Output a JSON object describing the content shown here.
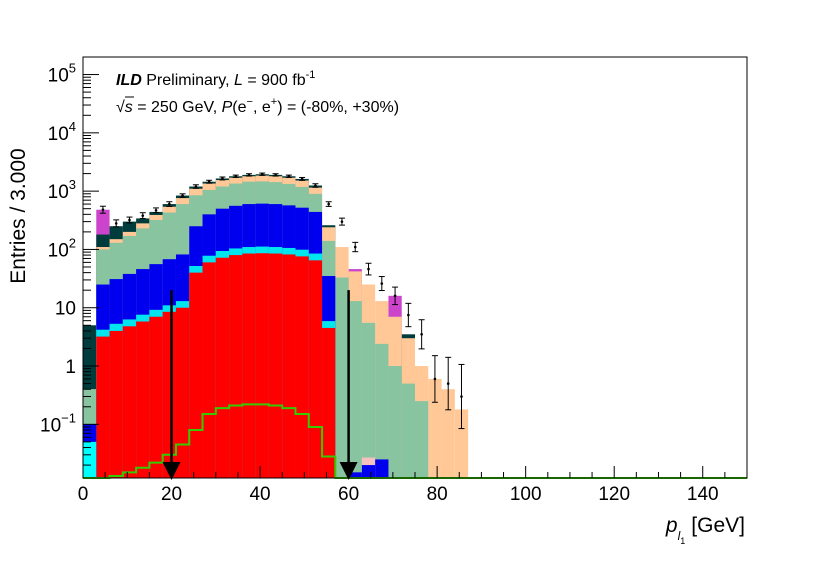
{
  "chart_data": {
    "type": "bar",
    "subtype": "stacked-histogram-log",
    "title_experiment": "ILD",
    "title_status": "Preliminary,",
    "title_lumi_prefix": "L",
    "title_lumi_eq": "= 900 fb",
    "title_lumi_exp": "-1",
    "title_line2_sqrt": "√",
    "title_line2_s": "s",
    "title_line2_energy": "= 250 GeV,",
    "title_line2_P": "P",
    "title_line2_open": "(e",
    "title_line2_minus": "−",
    "title_line2_comma": ", e",
    "title_line2_plus": "+",
    "title_line2_rest": ") = (-80%, +30%)",
    "ylabel": "Entries / 3.000",
    "xlabel_p": "p",
    "xlabel_l": "l",
    "xlabel_1": "1",
    "xlabel_unit": "[GeV]",
    "xlim": [
      0,
      150
    ],
    "ylim": [
      0.012,
      200000
    ],
    "yscale": "log",
    "x_ticks": [
      "0",
      "20",
      "40",
      "60",
      "80",
      "100",
      "120",
      "140"
    ],
    "y_ticks": [
      {
        "base": "10",
        "exp": "5"
      },
      {
        "base": "10",
        "exp": "4"
      },
      {
        "base": "10",
        "exp": "3"
      },
      {
        "base": "10",
        "exp": "2"
      },
      {
        "base": "10",
        "exp": ""
      },
      {
        "base": "1",
        "exp": ""
      },
      {
        "base": "10",
        "exp": "−1"
      }
    ],
    "bin_width": 3,
    "bin_edges_start": 0,
    "layers": [
      {
        "color": "#00ffff",
        "values": [
          0.05,
          0.012,
          0.012,
          0.012,
          0.012,
          0.012,
          0.012,
          0.012,
          0.012,
          0.012,
          0.012,
          0.012,
          0.012,
          0.012,
          0.012,
          0.012,
          0.012,
          0.012,
          0.012,
          0.012,
          0.012,
          0.012,
          0.012,
          0.012,
          0.012,
          0.012,
          0.012,
          0.012,
          0.012,
          0.012,
          0.012,
          0.012,
          0.012,
          0.012,
          0.012,
          0.012,
          0.012,
          0.012,
          0.012,
          0.012,
          0.012,
          0.012,
          0.012,
          0.012,
          0.012,
          0.012,
          0.012,
          0.012,
          0.012,
          0.012
        ]
      },
      {
        "color": "#0000ee",
        "values": [
          0.1,
          0.012,
          0.012,
          0.012,
          0.012,
          0.012,
          0.012,
          0.012,
          0.012,
          0.012,
          0.012,
          0.012,
          0.012,
          0.012,
          0.012,
          0.012,
          0.012,
          0.012,
          0.012,
          0.012,
          0.012,
          0.012,
          0.012,
          0.012,
          0.012,
          0.012,
          0.012,
          0.012,
          0.012,
          0.012,
          0.012,
          0.012,
          0.012,
          0.012,
          0.012,
          0.012,
          0.012,
          0.012,
          0.012,
          0.012,
          0.012,
          0.012,
          0.012,
          0.012,
          0.012,
          0.012,
          0.012,
          0.012,
          0.012,
          0.012
        ]
      },
      {
        "color": "#ff0000",
        "values": [
          0.012,
          3.2,
          4.0,
          4.8,
          5.8,
          7.0,
          8.5,
          10,
          40,
          60,
          72,
          80,
          85,
          86,
          85,
          82,
          76,
          65,
          4.5,
          0.012,
          0.012,
          0.012,
          0.012,
          0.012,
          0.012,
          0.012,
          0.012,
          0.012,
          0.012,
          0.012,
          0.012,
          0.012,
          0.012,
          0.012,
          0.012,
          0.012,
          0.012,
          0.012,
          0.012,
          0.012,
          0.012,
          0.012,
          0.012,
          0.012,
          0.012,
          0.012,
          0.012,
          0.012,
          0.012,
          0.012
        ]
      },
      {
        "color": "#00e5ee",
        "values": [
          0.012,
          4.2,
          5.3,
          6.3,
          7.6,
          9.2,
          11,
          13,
          52,
          78,
          94,
          104,
          110,
          112,
          110,
          106,
          99,
          85,
          5.9,
          0.012,
          0.012,
          0.012,
          0.012,
          0.012,
          0.012,
          0.012,
          0.012,
          0.012,
          0.012,
          0.012,
          0.012,
          0.012,
          0.012,
          0.012,
          0.012,
          0.012,
          0.012,
          0.012,
          0.012,
          0.012,
          0.012,
          0.012,
          0.012,
          0.012,
          0.012,
          0.012,
          0.012,
          0.012,
          0.012,
          0.012
        ]
      },
      {
        "color": "#0000ee",
        "values": [
          0.012,
          25,
          31,
          38,
          46,
          56,
          68,
          82,
          250,
          400,
          500,
          560,
          600,
          610,
          600,
          570,
          520,
          440,
          35,
          0.012,
          0.015,
          0.02,
          0.025,
          0.012,
          0.012,
          0.012,
          0.012,
          0.012,
          0.012,
          0.012,
          0.012,
          0.012,
          0.012,
          0.012,
          0.012,
          0.012,
          0.012,
          0.012,
          0.012,
          0.012,
          0.012,
          0.012,
          0.012,
          0.012,
          0.012,
          0.012,
          0.012,
          0.012,
          0.012,
          0.012
        ]
      },
      {
        "color": "#f4c0c0",
        "values": [
          0.012,
          0.012,
          0.012,
          0.012,
          0.012,
          0.012,
          0.012,
          0.012,
          0.012,
          0.012,
          0.012,
          0.012,
          0.012,
          0.012,
          0.012,
          0.012,
          0.012,
          0.012,
          0.012,
          0.012,
          0.012,
          0.027,
          0.012,
          0.012,
          0.012,
          0.012,
          0.012,
          0.012,
          0.012,
          0.012,
          0.012,
          0.012,
          0.012,
          0.012,
          0.012,
          0.012,
          0.012,
          0.012,
          0.012,
          0.012,
          0.012,
          0.012,
          0.012,
          0.012,
          0.012,
          0.012,
          0.012,
          0.012,
          0.012,
          0.012
        ]
      },
      {
        "color": "#88c4a0",
        "values": [
          0.4,
          100,
          130,
          170,
          230,
          320,
          430,
          600,
          850,
          1050,
          1200,
          1350,
          1450,
          1470,
          1430,
          1330,
          1180,
          900,
          140,
          33,
          13,
          5.5,
          2.4,
          1.0,
          0.5,
          0.25,
          0.012,
          0.012,
          0.012,
          0.012,
          0.012,
          0.012,
          0.012,
          0.012,
          0.012,
          0.012,
          0.012,
          0.012,
          0.012,
          0.012,
          0.012,
          0.012,
          0.012,
          0.012,
          0.012,
          0.012,
          0.012,
          0.012,
          0.012,
          0.012
        ]
      },
      {
        "color": "#ffc896",
        "values": [
          0.4,
          110,
          150,
          200,
          280,
          390,
          540,
          760,
          1100,
          1350,
          1550,
          1700,
          1800,
          1850,
          1800,
          1700,
          1520,
          1150,
          240,
          110,
          42,
          25,
          13,
          7,
          3.0,
          1.0,
          0.6,
          0.4,
          0.18,
          0.012,
          0.012,
          0.012,
          0.012,
          0.012,
          0.012,
          0.012,
          0.012,
          0.012,
          0.012,
          0.012,
          0.012,
          0.012,
          0.012,
          0.012,
          0.012,
          0.012,
          0.012,
          0.012,
          0.012,
          0.012
        ]
      },
      {
        "color": "#003c3c",
        "values": [
          5,
          180,
          250,
          300,
          340,
          440,
          600,
          840,
          1200,
          1450,
          1650,
          1800,
          1900,
          1950,
          1900,
          1800,
          1620,
          1250,
          260,
          0.012,
          0.012,
          0.012,
          0.012,
          0.012,
          3.5,
          0.012,
          0.012,
          0.012,
          0.012,
          0.012,
          0.012,
          0.012,
          0.012,
          0.012,
          0.012,
          0.012,
          0.012,
          0.012,
          0.012,
          0.012,
          0.012,
          0.012,
          0.012,
          0.012,
          0.012,
          0.012,
          0.012,
          0.012,
          0.012,
          0.012
        ]
      },
      {
        "color": "#cc44cc",
        "values": [
          0.012,
          480,
          0.012,
          0.012,
          0.012,
          0.012,
          0.012,
          0.012,
          0.012,
          0.012,
          0.012,
          0.012,
          0.012,
          0.012,
          0.012,
          0.012,
          0.012,
          0.012,
          0.012,
          0.012,
          46,
          0.012,
          0.012,
          16,
          0.012,
          0.012,
          0.012,
          0.012,
          0.012,
          0.012,
          0.012,
          0.012,
          0.012,
          0.012,
          0.012,
          0.012,
          0.012,
          0.012,
          0.012,
          0.012,
          0.012,
          0.012,
          0.012,
          0.012,
          0.012,
          0.012,
          0.012,
          0.012,
          0.012,
          0.012
        ]
      }
    ],
    "data_points": {
      "x": [
        4.5,
        7.5,
        10.5,
        13.5,
        16.5,
        19.5,
        22.5,
        25.5,
        28.5,
        31.5,
        34.5,
        37.5,
        40.5,
        43.5,
        46.5,
        49.5,
        52.5,
        55.5,
        58.5,
        61.5,
        64.5,
        67.5,
        70.5,
        73.5,
        76.5,
        79.5,
        82.5,
        85.5
      ],
      "y": [
        480,
        280,
        320,
        380,
        470,
        600,
        840,
        1200,
        1450,
        1650,
        1800,
        1900,
        1950,
        1900,
        1800,
        1620,
        1250,
        600,
        300,
        110,
        46,
        26,
        16,
        7.5,
        3.5,
        0.6,
        0.5,
        0.3
      ],
      "err": [
        0.06,
        0.06,
        0.05,
        0.05,
        0.04,
        0.04,
        0.03,
        0.03,
        0.025,
        0.025,
        0.02,
        0.02,
        0.02,
        0.02,
        0.02,
        0.025,
        0.03,
        0.04,
        0.06,
        0.08,
        0.1,
        0.12,
        0.15,
        0.2,
        0.25,
        0.4,
        0.45,
        0.55
      ]
    },
    "signal_line": {
      "color": "#33cc00",
      "values": [
        0.012,
        0.012,
        0.013,
        0.015,
        0.018,
        0.022,
        0.03,
        0.045,
        0.08,
        0.15,
        0.19,
        0.21,
        0.22,
        0.22,
        0.21,
        0.19,
        0.15,
        0.09,
        0.028,
        0.012,
        0.012,
        0.012,
        0.012,
        0.012,
        0.012,
        0.012,
        0.012,
        0.012,
        0.012,
        0.012,
        0.012,
        0.012,
        0.012,
        0.012,
        0.012,
        0.012,
        0.012,
        0.012,
        0.012,
        0.012,
        0.012,
        0.012,
        0.012,
        0.012,
        0.012,
        0.012,
        0.012,
        0.012,
        0.012,
        0.012
      ]
    },
    "cut_arrows": [
      {
        "x": 20,
        "y_top": 20
      },
      {
        "x": 60,
        "y_top": 20
      }
    ]
  }
}
